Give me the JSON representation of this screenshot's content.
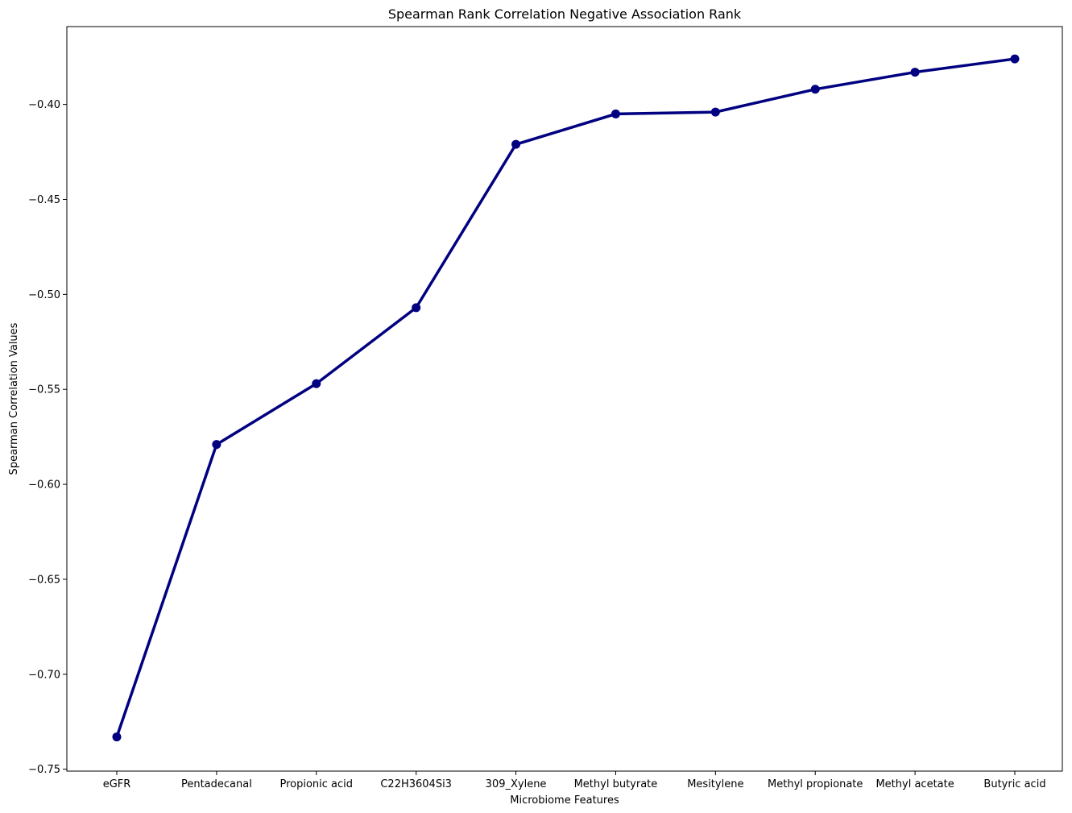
{
  "chart_data": {
    "type": "line",
    "title": "Spearman Rank Correlation Negative Association Rank",
    "xlabel": "Microbiome Features",
    "ylabel": "Spearman Correlation Values",
    "categories": [
      "eGFR",
      "Pentadecanal",
      "Propionic acid",
      "C22H3604Si3",
      "309_Xylene",
      "Methyl butyrate",
      "Mesitylene",
      "Methyl propionate",
      "Methyl acetate",
      "Butyric acid"
    ],
    "series": [
      {
        "values": [
          -0.733,
          -0.579,
          -0.547,
          -0.507,
          -0.421,
          -0.405,
          -0.404,
          -0.392,
          -0.383,
          -0.376
        ]
      }
    ],
    "ylim": [
      -0.751,
      -0.359
    ],
    "yticks": [
      -0.75,
      -0.7,
      -0.65,
      -0.6,
      -0.55,
      -0.5,
      -0.45,
      -0.4
    ],
    "ytick_labels": [
      "−0.75",
      "−0.70",
      "−0.65",
      "−0.60",
      "−0.55",
      "−0.50",
      "−0.45",
      "−0.40"
    ],
    "line_color": "#000080",
    "marker_color": "#000080",
    "grid": false
  }
}
